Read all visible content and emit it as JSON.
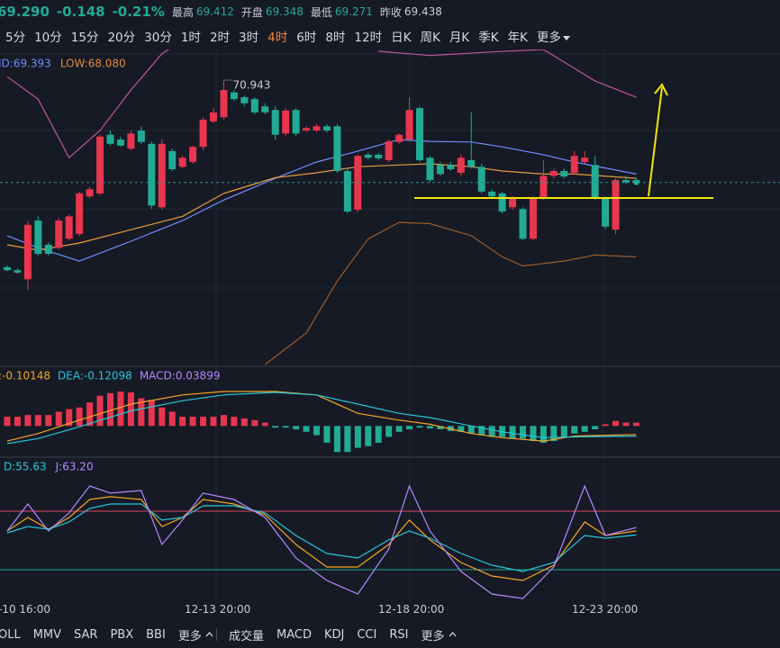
{
  "header": {
    "price": "69.290",
    "change": "-0.148",
    "change_pct": "-0.21%",
    "stats": [
      {
        "label": "最高",
        "value": "69.412"
      },
      {
        "label": "开盘",
        "value": "69.348"
      },
      {
        "label": "最低",
        "value": "69.271"
      },
      {
        "label": "昨收",
        "value": "69.438"
      }
    ]
  },
  "timeframes": [
    "5分",
    "10分",
    "15分",
    "20分",
    "30分",
    "1时",
    "2时",
    "3时",
    "4时",
    "6时",
    "8时",
    "12时",
    "日K",
    "周K",
    "月K",
    "季K",
    "年K",
    "更多"
  ],
  "active_timeframe": 8,
  "main": {
    "ylim": [
      66.28,
      71.49
    ],
    "up_color": "#e8364f",
    "down_color": "#22ab94",
    "legend": [
      {
        "text": "ID:69.393",
        "color": "#6f8cff"
      },
      {
        "text": "LOW:68.080",
        "color": "#e38a3b"
      }
    ],
    "high_label": "70.943",
    "candles": [
      [
        67.89,
        67.92,
        67.82,
        67.84
      ],
      [
        67.84,
        67.87,
        67.78,
        67.8
      ],
      [
        67.69,
        68.66,
        67.51,
        68.59
      ],
      [
        68.66,
        68.73,
        68.08,
        68.11
      ],
      [
        68.26,
        68.3,
        68.08,
        68.11
      ],
      [
        68.21,
        68.7,
        68.18,
        68.66
      ],
      [
        68.36,
        68.76,
        68.33,
        68.73
      ],
      [
        68.44,
        69.14,
        68.4,
        69.11
      ],
      [
        69.06,
        69.22,
        69.03,
        69.18
      ],
      [
        69.11,
        70.08,
        69.08,
        70.05
      ],
      [
        70.08,
        70.15,
        69.9,
        69.93
      ],
      [
        70.0,
        70.05,
        69.88,
        69.9
      ],
      [
        69.85,
        70.15,
        69.82,
        70.1
      ],
      [
        70.15,
        70.22,
        69.93,
        69.96
      ],
      [
        69.93,
        69.97,
        68.85,
        68.91
      ],
      [
        68.88,
        70.0,
        68.84,
        69.93
      ],
      [
        69.81,
        69.85,
        69.48,
        69.51
      ],
      [
        69.55,
        69.73,
        69.52,
        69.7
      ],
      [
        69.63,
        69.9,
        69.6,
        69.88
      ],
      [
        69.88,
        70.37,
        69.82,
        70.33
      ],
      [
        70.3,
        70.52,
        70.27,
        70.45
      ],
      [
        70.37,
        70.94,
        70.33,
        70.82
      ],
      [
        70.78,
        70.82,
        70.64,
        70.67
      ],
      [
        70.7,
        70.73,
        70.55,
        70.6
      ],
      [
        70.67,
        70.7,
        70.42,
        70.45
      ],
      [
        70.55,
        70.6,
        70.42,
        70.45
      ],
      [
        70.49,
        70.55,
        70.0,
        70.08
      ],
      [
        70.1,
        70.52,
        70.05,
        70.48
      ],
      [
        70.49,
        70.52,
        70.05,
        70.1
      ],
      [
        70.15,
        70.22,
        70.12,
        70.19
      ],
      [
        70.15,
        70.26,
        70.12,
        70.22
      ],
      [
        70.22,
        70.26,
        70.12,
        70.15
      ],
      [
        70.22,
        70.26,
        69.45,
        69.48
      ],
      [
        69.48,
        69.52,
        68.78,
        68.81
      ],
      [
        68.84,
        69.76,
        68.8,
        69.73
      ],
      [
        69.75,
        69.78,
        69.67,
        69.7
      ],
      [
        69.75,
        69.78,
        69.66,
        69.69
      ],
      [
        69.66,
        70.0,
        69.63,
        69.97
      ],
      [
        69.96,
        70.1,
        69.93,
        70.08
      ],
      [
        70.0,
        70.7,
        69.97,
        70.49
      ],
      [
        70.52,
        70.55,
        69.63,
        69.66
      ],
      [
        69.7,
        69.73,
        69.3,
        69.33
      ],
      [
        69.58,
        69.63,
        69.4,
        69.43
      ],
      [
        69.58,
        69.63,
        69.48,
        69.51
      ],
      [
        69.45,
        69.76,
        69.4,
        69.7
      ],
      [
        69.66,
        70.45,
        69.52,
        69.55
      ],
      [
        69.55,
        69.6,
        69.11,
        69.14
      ],
      [
        69.14,
        69.18,
        69.03,
        69.06
      ],
      [
        69.11,
        69.14,
        68.78,
        68.81
      ],
      [
        68.88,
        69.06,
        68.84,
        69.03
      ],
      [
        68.85,
        68.88,
        68.33,
        68.36
      ],
      [
        68.36,
        69.06,
        68.33,
        69.03
      ],
      [
        69.03,
        69.66,
        69.0,
        69.4
      ],
      [
        69.4,
        69.52,
        69.36,
        69.48
      ],
      [
        69.48,
        69.52,
        69.36,
        69.39
      ],
      [
        69.45,
        69.81,
        69.42,
        69.73
      ],
      [
        69.63,
        69.81,
        69.6,
        69.7
      ],
      [
        69.58,
        69.73,
        69.0,
        69.03
      ],
      [
        69.03,
        69.06,
        68.52,
        68.56
      ],
      [
        68.51,
        69.36,
        68.44,
        69.33
      ],
      [
        69.33,
        69.4,
        69.26,
        69.29
      ],
      [
        69.33,
        69.36,
        69.26,
        69.29
      ]
    ],
    "lines": [
      {
        "color": "#c2569b",
        "x": [
          0,
          3,
          6,
          9,
          12,
          15,
          17,
          26,
          36,
          41,
          47,
          52,
          57,
          61
        ],
        "values": [
          71.04,
          70.67,
          69.7,
          70.15,
          70.82,
          71.42,
          71.64,
          null,
          71.46,
          71.39,
          71.45,
          71.49,
          70.97,
          70.7
        ]
      },
      {
        "color": "#6f8cff",
        "x": [
          0,
          3,
          7,
          12,
          17,
          21,
          26,
          30,
          34,
          38,
          41,
          45,
          48,
          52,
          55,
          61
        ],
        "values": [
          68.41,
          68.21,
          67.99,
          68.32,
          68.66,
          69.0,
          69.36,
          69.63,
          69.81,
          70.0,
          69.97,
          69.96,
          69.88,
          69.75,
          69.63,
          69.43
        ]
      },
      {
        "color": "#e89a3c",
        "x": [
          0,
          3,
          7,
          12,
          17,
          21,
          26,
          30,
          34,
          38,
          41,
          45,
          48,
          52,
          55,
          61
        ],
        "values": [
          68.26,
          68.17,
          68.29,
          68.51,
          68.73,
          69.11,
          69.37,
          69.45,
          69.55,
          69.58,
          69.6,
          69.55,
          69.48,
          69.43,
          69.43,
          69.36
        ]
      },
      {
        "color": "#9c5b2a",
        "x": [
          25,
          29,
          32,
          35,
          38,
          41,
          45,
          48,
          50,
          54,
          57,
          61
        ],
        "values": [
          66.28,
          66.8,
          67.66,
          68.36,
          68.63,
          68.61,
          68.41,
          68.06,
          67.91,
          67.99,
          68.09,
          68.06
        ]
      }
    ]
  },
  "macd": {
    "ylim": [
      -0.34,
      0.7
    ],
    "legend": [
      {
        "text": ":-0.10148",
        "color": "#f5a623"
      },
      {
        "text": "DEA:-0.12098",
        "color": "#26c6da"
      },
      {
        "text": "MACD:0.03899",
        "color": "#b388ff"
      }
    ],
    "histogram": [
      0.11,
      0.11,
      0.13,
      0.13,
      0.13,
      0.17,
      0.2,
      0.22,
      0.28,
      0.36,
      0.39,
      0.41,
      0.4,
      0.33,
      0.31,
      0.22,
      0.17,
      0.11,
      0.11,
      0.11,
      0.11,
      0.13,
      0.11,
      0.09,
      0.07,
      0.04,
      -0.02,
      -0.02,
      -0.04,
      -0.07,
      -0.11,
      -0.2,
      -0.31,
      -0.31,
      -0.26,
      -0.24,
      -0.2,
      -0.13,
      -0.07,
      -0.04,
      -0.02,
      -0.03,
      -0.04,
      -0.06,
      -0.07,
      -0.09,
      -0.11,
      -0.13,
      -0.13,
      -0.15,
      -0.15,
      -0.18,
      -0.2,
      -0.18,
      -0.13,
      -0.09,
      -0.07,
      -0.04,
      0.02,
      0.06,
      0.04,
      0.039
    ],
    "lines": [
      {
        "color": "#f5a623",
        "x": [
          0,
          3,
          7,
          12,
          17,
          21,
          26,
          30,
          34,
          38,
          41,
          45,
          48,
          52,
          55,
          61
        ],
        "values": [
          -0.18,
          -0.09,
          0.07,
          0.26,
          0.37,
          0.41,
          0.41,
          0.37,
          0.15,
          0.07,
          0.02,
          -0.09,
          -0.14,
          -0.18,
          -0.12,
          -0.10148
        ]
      },
      {
        "color": "#26c6da",
        "x": [
          0,
          3,
          7,
          12,
          17,
          21,
          26,
          30,
          34,
          38,
          41,
          45,
          48,
          52,
          55,
          61
        ],
        "values": [
          -0.21,
          -0.15,
          -0.01,
          0.18,
          0.3,
          0.37,
          0.4,
          0.37,
          0.26,
          0.15,
          0.1,
          0.0,
          -0.07,
          -0.14,
          -0.13,
          -0.12098
        ]
      }
    ]
  },
  "kdj": {
    "ylim": [
      -32.6,
      133.5
    ],
    "legend": [
      {
        "text": "D:55.63",
        "color": "#26c6da"
      },
      {
        "text": "J:63.20",
        "color": "#b388ff"
      }
    ],
    "ref_lines": [
      {
        "value": 80,
        "color": "#e0485f"
      },
      {
        "value": 20,
        "color": "#1fa88f"
      }
    ],
    "lines": [
      {
        "color": "#f5a623",
        "x": [
          0,
          2,
          4,
          6,
          8,
          10,
          13,
          15,
          17,
          19,
          22,
          25,
          28,
          31,
          34,
          37,
          39,
          41,
          44,
          47,
          50,
          53,
          56,
          58,
          61
        ],
        "values": [
          59.7,
          73.5,
          61.5,
          73.5,
          92.0,
          94.8,
          92.0,
          64.3,
          73.5,
          92.0,
          87.4,
          76.3,
          45.8,
          22.8,
          22.8,
          45.8,
          70.8,
          50.5,
          27.4,
          13.5,
          8.9,
          24.6,
          68.9,
          55.1,
          59.7
        ]
      },
      {
        "color": "#26c6da",
        "x": [
          0,
          2,
          4,
          6,
          8,
          10,
          13,
          15,
          17,
          19,
          22,
          25,
          28,
          31,
          34,
          37,
          39,
          41,
          44,
          47,
          50,
          53,
          56,
          58,
          61
        ],
        "values": [
          57.8,
          64.3,
          61.5,
          68.9,
          82.8,
          87.4,
          87.4,
          70.8,
          73.5,
          85.5,
          85.5,
          78.2,
          55.1,
          36.6,
          32.0,
          50.5,
          59.7,
          52.3,
          36.6,
          24.6,
          18.2,
          27.4,
          55.1,
          52.3,
          55.63
        ]
      },
      {
        "color": "#b388ff",
        "x": [
          0,
          2,
          4,
          6,
          8,
          10,
          13,
          15,
          17,
          19,
          22,
          25,
          28,
          31,
          34,
          37,
          39,
          41,
          44,
          47,
          50,
          53,
          56,
          58,
          61
        ],
        "values": [
          59.7,
          87.4,
          59.7,
          78.2,
          105.8,
          98.5,
          101.2,
          45.8,
          70.8,
          98.5,
          92.0,
          73.5,
          32.0,
          8.9,
          -4.9,
          41.2,
          105.8,
          59.7,
          18.2,
          -4.9,
          -9.5,
          22.8,
          105.8,
          55.1,
          63.2
        ]
      }
    ]
  },
  "dates": [
    "-10 16:00",
    "12-13 20:00",
    "12-18 20:00",
    "12-23 20:00"
  ],
  "indicators_left": [
    "OLL",
    "MMV",
    "SAR",
    "PBX",
    "BBI",
    "更多"
  ],
  "indicators_right": [
    "成交量",
    "MACD",
    "KDJ",
    "CCI",
    "RSI",
    "更多"
  ]
}
